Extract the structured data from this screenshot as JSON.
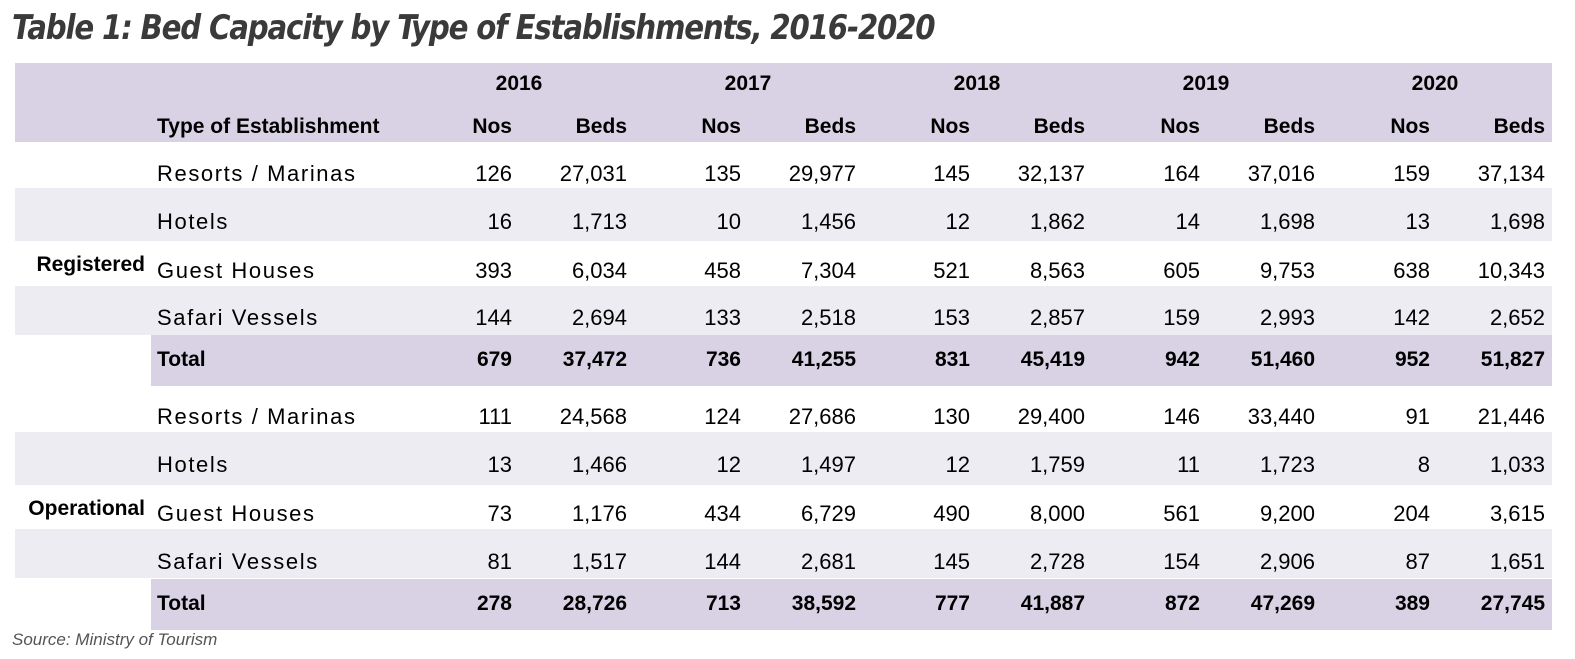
{
  "title": "Table 1: Bed Capacity by Type of Establishments, 2016-2020",
  "header": {
    "years": [
      "2016",
      "2017",
      "2018",
      "2019",
      "2020"
    ],
    "type_label": "Type of Establishment",
    "nos_label": "Nos",
    "beds_label": "Beds"
  },
  "groups": [
    {
      "label": "Registered",
      "rows": [
        {
          "name": "Resorts / Marinas",
          "values": [
            "126",
            "27,031",
            "135",
            "29,977",
            "145",
            "32,137",
            "164",
            "37,016",
            "159",
            "37,134"
          ]
        },
        {
          "name": "Hotels",
          "values": [
            "16",
            "1,713",
            "10",
            "1,456",
            "12",
            "1,862",
            "14",
            "1,698",
            "13",
            "1,698"
          ]
        },
        {
          "name": "Guest Houses",
          "values": [
            "393",
            "6,034",
            "458",
            "7,304",
            "521",
            "8,563",
            "605",
            "9,753",
            "638",
            "10,343"
          ]
        },
        {
          "name": "Safari Vessels",
          "values": [
            "144",
            "2,694",
            "133",
            "2,518",
            "153",
            "2,857",
            "159",
            "2,993",
            "142",
            "2,652"
          ]
        }
      ],
      "total": {
        "name": "Total",
        "values": [
          "679",
          "37,472",
          "736",
          "41,255",
          "831",
          "45,419",
          "942",
          "51,460",
          "952",
          "51,827"
        ]
      }
    },
    {
      "label": "Operational",
      "rows": [
        {
          "name": "Resorts / Marinas",
          "values": [
            "111",
            "24,568",
            "124",
            "27,686",
            "130",
            "29,400",
            "146",
            "33,440",
            "91",
            "21,446"
          ]
        },
        {
          "name": "Hotels",
          "values": [
            "13",
            "1,466",
            "12",
            "1,497",
            "12",
            "1,759",
            "11",
            "1,723",
            "8",
            "1,033"
          ]
        },
        {
          "name": "Guest Houses",
          "values": [
            "73",
            "1,176",
            "434",
            "6,729",
            "490",
            "8,000",
            "561",
            "9,200",
            "204",
            "3,615"
          ]
        },
        {
          "name": "Safari Vessels",
          "values": [
            "81",
            "1,517",
            "144",
            "2,681",
            "145",
            "2,728",
            "154",
            "2,906",
            "87",
            "1,651"
          ]
        }
      ],
      "total": {
        "name": "Total",
        "values": [
          "278",
          "28,726",
          "713",
          "38,592",
          "777",
          "41,887",
          "872",
          "47,269",
          "389",
          "27,745"
        ]
      }
    }
  ],
  "source": "Source: Ministry of Tourism",
  "colors": {
    "header_band": "#d8d2e4",
    "stripe_band": "#ececf2",
    "title": "#3a3a3a"
  }
}
